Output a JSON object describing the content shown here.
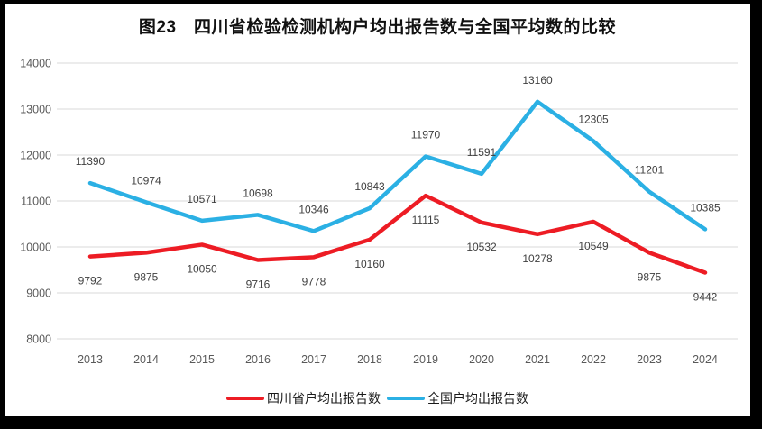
{
  "chart_data": {
    "type": "line",
    "title": "图23　四川省检验检测机构户均出报告数与全国平均数的比较",
    "categories": [
      "2013",
      "2014",
      "2015",
      "2016",
      "2017",
      "2018",
      "2019",
      "2020",
      "2021",
      "2022",
      "2023",
      "2024"
    ],
    "series": [
      {
        "name": "四川省户均出报告数",
        "color": "#ED1C24",
        "label_position": "below",
        "values": [
          9792,
          9875,
          10050,
          9716,
          9778,
          10160,
          11115,
          10532,
          10278,
          10549,
          9875,
          9442
        ]
      },
      {
        "name": "全国户均出报告数",
        "color": "#2BB0E4",
        "label_position": "above",
        "values": [
          11390,
          10974,
          10571,
          10698,
          10346,
          10843,
          11970,
          11591,
          13160,
          12305,
          11201,
          10385
        ]
      }
    ],
    "ylim": [
      8000,
      14000
    ],
    "yticks": [
      8000,
      9000,
      10000,
      11000,
      12000,
      13000,
      14000
    ],
    "xlabel": "",
    "ylabel": "",
    "grid": "horizontal",
    "gridline_color": "#D9D9D9",
    "tick_label_color": "#595959",
    "data_label_color": "#404040",
    "legend_position": "bottom"
  }
}
